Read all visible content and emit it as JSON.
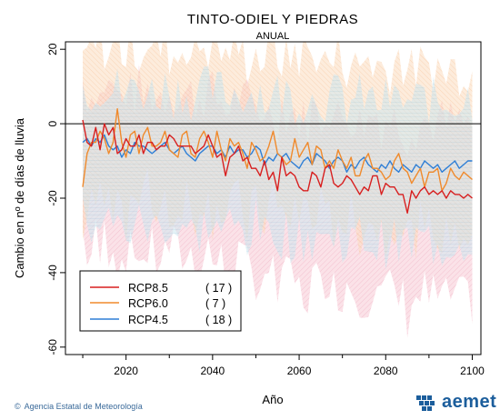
{
  "chart_data": {
    "type": "line",
    "title": "TINTO-ODIEL Y PIEDRAS",
    "subtitle": "ANUAL",
    "xlabel": "Año",
    "ylabel": "Cambio en nº de días de lluvia",
    "xlim": [
      2006,
      2102
    ],
    "ylim": [
      -62,
      22
    ],
    "xticks": [
      2020,
      2040,
      2060,
      2080,
      2100
    ],
    "yticks": [
      20,
      0,
      -20,
      -40,
      -60
    ],
    "zero_line": true,
    "legend_position": "bottom-left",
    "series": [
      {
        "name": "RCP8.5",
        "count": "( 17 )",
        "color": "#d81f1f",
        "band_color": "#f2a3b8",
        "x_start": 2010,
        "x_end": 2100,
        "mean": [
          1,
          -5,
          -6,
          -1,
          -7,
          0,
          -3,
          -1,
          -8,
          -7,
          -4,
          -6,
          -6,
          -3,
          -8,
          -5,
          -5,
          -7,
          -6,
          -6,
          -3,
          -4,
          -6,
          -6,
          -6,
          -6,
          -8,
          -7,
          -6,
          -3,
          -6,
          -9,
          -8,
          -14,
          -9,
          -8,
          -6,
          -10,
          -9,
          -12,
          -12,
          -14,
          -10,
          -15,
          -13,
          -18,
          -9,
          -14,
          -13,
          -14,
          -17,
          -18,
          -18,
          -13,
          -14,
          -17,
          -12,
          -11,
          -16,
          -17,
          -16,
          -14,
          -15,
          -17,
          -19,
          -17,
          -18,
          -14,
          -14,
          -19,
          -16,
          -17,
          -17,
          -19,
          -19,
          -24,
          -18,
          -20,
          -18,
          -17,
          -19,
          -18,
          -19,
          -18,
          -20,
          -18,
          -19,
          -19,
          -20,
          -19,
          -20
        ],
        "band_low": -29,
        "band_high": 12
      },
      {
        "name": "RCP6.0",
        "count": "(   7 )",
        "color": "#f08a2c",
        "band_color": "#f8c89e",
        "x_start": 2010,
        "x_end": 2100,
        "mean": [
          -17,
          -8,
          -5,
          -5,
          -2,
          -4,
          -8,
          -5,
          4,
          -5,
          -9,
          -3,
          -2,
          -8,
          -3,
          -1,
          -6,
          -6,
          -5,
          -2,
          -7,
          -8,
          -9,
          -3,
          -2,
          -8,
          -9,
          -4,
          -2,
          -5,
          -9,
          -2,
          -7,
          -10,
          -4,
          -6,
          -5,
          -8,
          -12,
          -5,
          -7,
          -10,
          -9,
          -6,
          -2,
          -8,
          -9,
          -11,
          -10,
          -4,
          -9,
          -7,
          -5,
          -11,
          -6,
          -7,
          -12,
          -10,
          -12,
          -7,
          -10,
          -12,
          -9,
          -14,
          -14,
          -10,
          -8,
          -12,
          -12,
          -13,
          -15,
          -14,
          -10,
          -8,
          -12,
          -13,
          -16,
          -14,
          -12,
          -17,
          -13,
          -13,
          -12,
          -18,
          -16,
          -12,
          -14,
          -15,
          -13,
          -14,
          -15
        ],
        "band_low": -32,
        "band_high": 13
      },
      {
        "name": "RCP4.5",
        "count": "( 18 )",
        "color": "#2f7fd6",
        "band_color": "#a8d4e4",
        "x_start": 2010,
        "x_end": 2100,
        "mean": [
          -5,
          -4,
          -6,
          -4,
          -5,
          -3,
          -6,
          -7,
          -6,
          -9,
          -7,
          -8,
          -5,
          -6,
          -6,
          -7,
          -8,
          -7,
          -6,
          -5,
          -7,
          -8,
          -7,
          -6,
          -8,
          -9,
          -10,
          -8,
          -7,
          -6,
          -6,
          -8,
          -7,
          -9,
          -6,
          -8,
          -7,
          -7,
          -9,
          -8,
          -6,
          -7,
          -11,
          -9,
          -10,
          -8,
          -9,
          -8,
          -10,
          -11,
          -12,
          -10,
          -9,
          -11,
          -8,
          -9,
          -10,
          -12,
          -10,
          -9,
          -10,
          -13,
          -11,
          -12,
          -10,
          -9,
          -11,
          -12,
          -13,
          -11,
          -12,
          -10,
          -12,
          -13,
          -11,
          -12,
          -13,
          -11,
          -12,
          -10,
          -11,
          -12,
          -11,
          -13,
          -12,
          -11,
          -10,
          -12,
          -11,
          -10,
          -10
        ],
        "band_low": -26,
        "band_high": 10
      }
    ]
  },
  "footer": {
    "credit": "Agencia Estatal de Meteorología",
    "logo_text": "aemet"
  }
}
